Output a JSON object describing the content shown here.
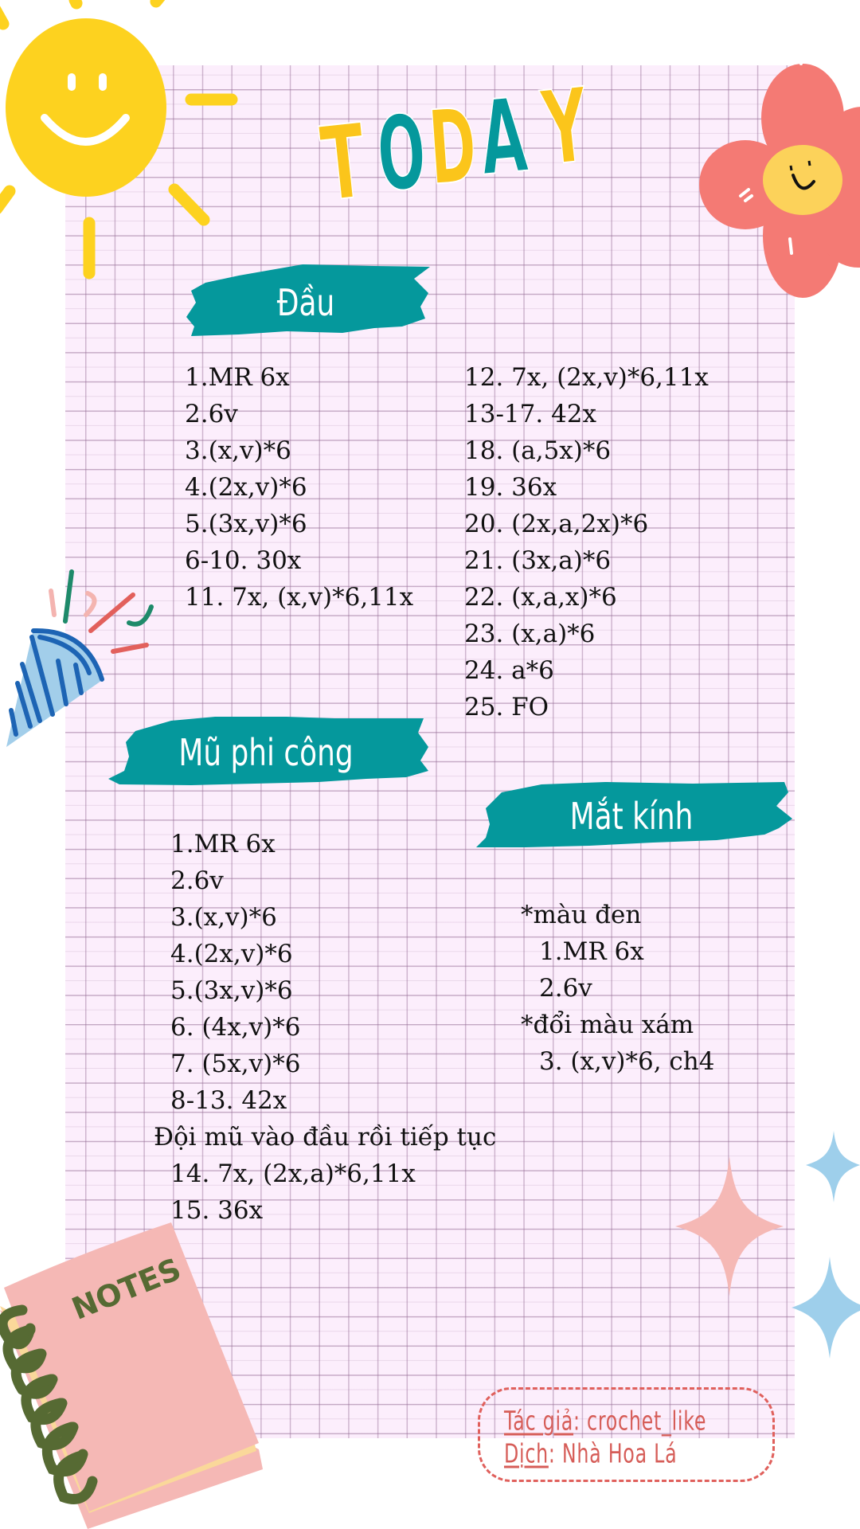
{
  "title": {
    "letters": [
      "T",
      "O",
      "D",
      "A",
      "Y"
    ]
  },
  "colors": {
    "teal": "#05989C",
    "yellow": "#FDD21F",
    "paper": "#FCEEFC",
    "credit": "#D65D58",
    "flower": "#F47A74"
  },
  "notebook": {
    "label": "NOTES"
  },
  "sections": {
    "head": {
      "title": "Đầu",
      "col1": [
        "1.MR 6x",
        "2.6v",
        "3.(x,v)*6",
        "4.(2x,v)*6",
        "5.(3x,v)*6",
        "6-10. 30x",
        "11. 7x, (x,v)*6,11x"
      ],
      "col2": [
        "12. 7x, (2x,v)*6,11x",
        "13-17. 42x",
        "18. (a,5x)*6",
        "19. 36x",
        "20. (2x,a,2x)*6",
        "21. (3x,a)*6",
        "22. (x,a,x)*6",
        "23. (x,a)*6",
        "24. a*6",
        "25. FO"
      ]
    },
    "hat": {
      "title": "Mũ phi công",
      "rows": [
        "1.MR 6x",
        "2.6v",
        "3.(x,v)*6",
        "4.(2x,v)*6",
        "5.(3x,v)*6",
        "6. (4x,v)*6",
        "7. (5x,v)*6",
        "8-13. 42x"
      ],
      "note": "Đội mũ vào đầu rồi tiếp tục",
      "rows_after": [
        "14. 7x, (2x,a)*6,11x",
        "15. 36x"
      ]
    },
    "glasses": {
      "title": "Mắt kính",
      "note1": "*màu đen",
      "rows1": [
        "1.MR 6x",
        "2.6v"
      ],
      "note2": "*đổi màu xám",
      "rows2": [
        "3. (x,v)*6, ch4"
      ]
    }
  },
  "credit": {
    "author_label": "Tác giả",
    "author": ": crochet_like",
    "translator_label": "Dịch",
    "translator": ": Nhà Hoa Lá"
  }
}
